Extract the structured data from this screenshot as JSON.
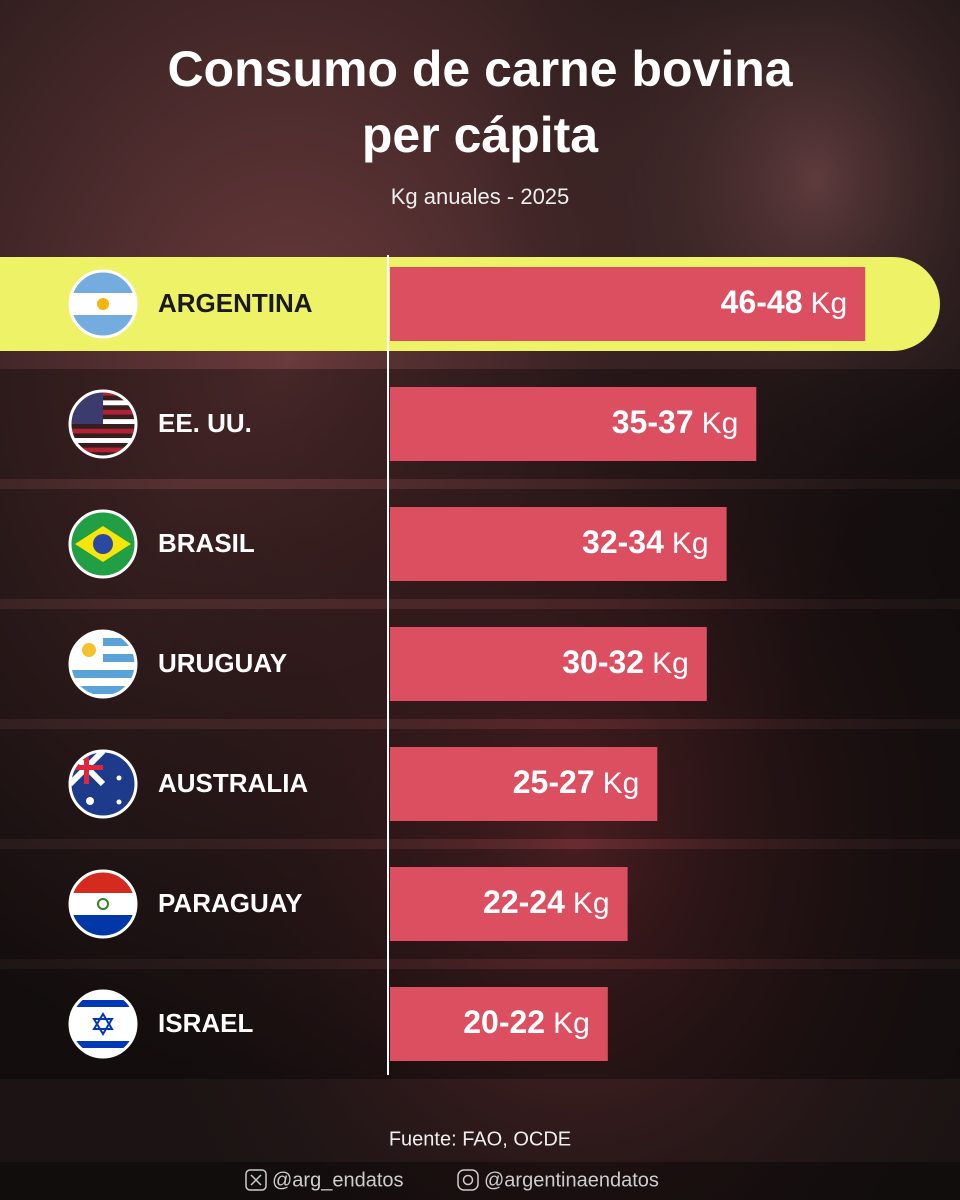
{
  "chart_data": {
    "type": "bar",
    "title": "Consumo de carne bovina per cápita",
    "subtitle": "Kg anuales  - 2025",
    "categories": [
      "ARGENTINA",
      "EE. UU.",
      "BRASIL",
      "URUGUAY",
      "AUSTRALIA",
      "PARAGUAY",
      "ISRAEL"
    ],
    "low": [
      46,
      35,
      32,
      30,
      25,
      22,
      20
    ],
    "high": [
      48,
      37,
      34,
      32,
      27,
      24,
      22
    ],
    "value_labels": [
      "46-48",
      "35-37",
      "32-34",
      "30-32",
      "25-27",
      "22-24",
      "20-22"
    ],
    "unit": "Kg",
    "color": "#dc4f61",
    "highlight": "ARGENTINA",
    "highlight_color": "#eef266",
    "source": "Fuente: FAO, OCDE",
    "social": [
      "@arg_endatos",
      "@argentinaendatos"
    ]
  }
}
